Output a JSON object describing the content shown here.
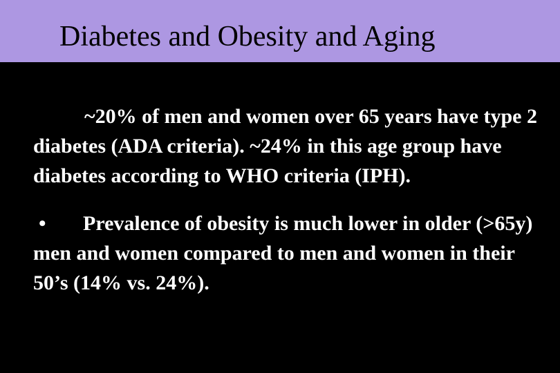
{
  "slide": {
    "title": "Diabetes and Obesity and Aging",
    "colors": {
      "title_bar": "#ad97e2",
      "background": "#000000",
      "body_text": "#ffffff",
      "title_text": "#000000"
    },
    "paragraphs": [
      {
        "text": "~20% of men and women over 65 years have type 2 diabetes (ADA criteria). ~24% in this age group have diabetes according to WHO criteria (IPH)."
      },
      {
        "bullet": "•",
        "text": "Prevalence of obesity is much lower in older (>65y)   men and women compared to men and women in their 50’s (14% vs. 24%)."
      }
    ]
  }
}
